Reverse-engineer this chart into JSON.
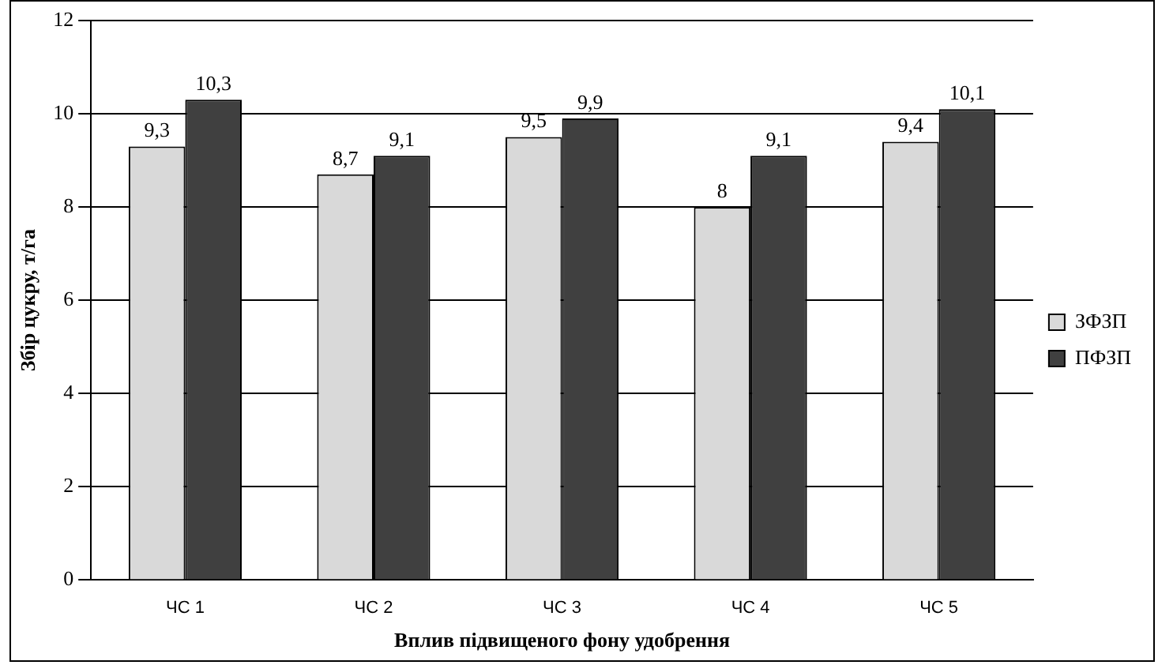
{
  "chart_data": {
    "type": "bar",
    "xlabel": "Вплив підвищеного фону удобрення",
    "ylabel": "Збір цукру, т/га",
    "categories": [
      "ЧС 1",
      "ЧС 2",
      "ЧС 3",
      "ЧС 4",
      "ЧС 5"
    ],
    "series": [
      {
        "name": "ЗФЗП",
        "color": "#d9d9d9",
        "values": [
          9.3,
          8.7,
          9.5,
          8,
          9.4
        ],
        "value_labels": [
          "9,3",
          "8,7",
          "9,5",
          "8",
          "9,4"
        ]
      },
      {
        "name": "ПФЗП",
        "color": "#404040",
        "values": [
          10.3,
          9.1,
          9.9,
          9.1,
          10.1
        ],
        "value_labels": [
          "10,3",
          "9,1",
          "9,9",
          "9,1",
          "10,1"
        ]
      }
    ],
    "ylim": [
      0,
      12
    ],
    "yticks": [
      0,
      2,
      4,
      6,
      8,
      10,
      12
    ],
    "grid": "y",
    "legend": "right"
  }
}
